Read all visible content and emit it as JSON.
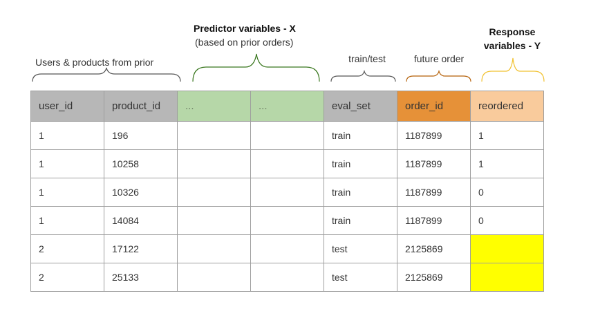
{
  "labels": {
    "predictor_title": "Predictor variables - X",
    "predictor_sub": "(based on prior orders)",
    "response_line1": "Response",
    "response_line2": "variables - Y",
    "users_products": "Users & products from prior",
    "train_test": "train/test",
    "future_order": "future order"
  },
  "colors": {
    "header_gray": "#b7b7b7",
    "predictor_green": "#b6d7a8",
    "order_orange": "#e69138",
    "response_peach": "#f9cb9c",
    "missing_yellow": "#ffff00",
    "brace_gray": "#555555",
    "brace_green": "#38761d",
    "brace_orange": "#b45f06",
    "brace_yellow": "#f1c232"
  },
  "table": {
    "headers": [
      "user_id",
      "product_id",
      "...",
      "...",
      "eval_set",
      "order_id",
      "reordered"
    ],
    "rows": [
      [
        "1",
        "196",
        "",
        "",
        "train",
        "1187899",
        "1"
      ],
      [
        "1",
        "10258",
        "",
        "",
        "train",
        "1187899",
        "1"
      ],
      [
        "1",
        "10326",
        "",
        "",
        "train",
        "1187899",
        "0"
      ],
      [
        "1",
        "14084",
        "",
        "",
        "train",
        "1187899",
        "0"
      ],
      [
        "2",
        "17122",
        "",
        "",
        "test",
        "2125869",
        ""
      ],
      [
        "2",
        "25133",
        "",
        "",
        "test",
        "2125869",
        ""
      ]
    ]
  }
}
